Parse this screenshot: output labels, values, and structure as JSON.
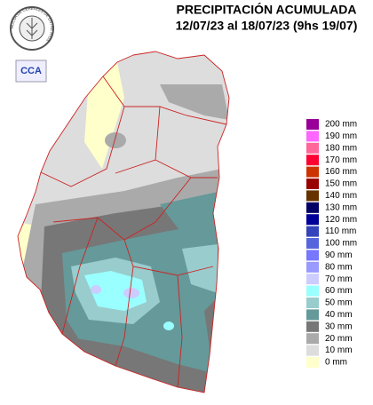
{
  "header": {
    "title": "PRECIPITACIÓN ACUMULADA",
    "subtitle": "12/07/23 al 18/07/23 (9hs 19/07)"
  },
  "logos": {
    "ring_text": "BOLSA DE CEREALES DE ENTRE RIOS",
    "badge": "CCA"
  },
  "legend": [
    {
      "label": "200 mm",
      "color": "#990099"
    },
    {
      "label": "190 mm",
      "color": "#ff66ff"
    },
    {
      "label": "180 mm",
      "color": "#ff6699"
    },
    {
      "label": "170 mm",
      "color": "#ff0033"
    },
    {
      "label": "160 mm",
      "color": "#cc3300"
    },
    {
      "label": "150 mm",
      "color": "#990000"
    },
    {
      "label": "140 mm",
      "color": "#663300"
    },
    {
      "label": "130 mm",
      "color": "#000066"
    },
    {
      "label": "120 mm",
      "color": "#000099"
    },
    {
      "label": "110 mm",
      "color": "#3344bb"
    },
    {
      "label": "100 mm",
      "color": "#5566dd"
    },
    {
      "label": "90 mm",
      "color": "#7777ff"
    },
    {
      "label": "80 mm",
      "color": "#9999ff"
    },
    {
      "label": "70 mm",
      "color": "#ccccff"
    },
    {
      "label": "60 mm",
      "color": "#99ffff"
    },
    {
      "label": "50 mm",
      "color": "#99cccc"
    },
    {
      "label": "40 mm",
      "color": "#669999"
    },
    {
      "label": "30 mm",
      "color": "#777777"
    },
    {
      "label": "20 mm",
      "color": "#aaaaaa"
    },
    {
      "label": "10 mm",
      "color": "#dddddd"
    },
    {
      "label": "0 mm",
      "color": "#ffffcc"
    }
  ]
}
